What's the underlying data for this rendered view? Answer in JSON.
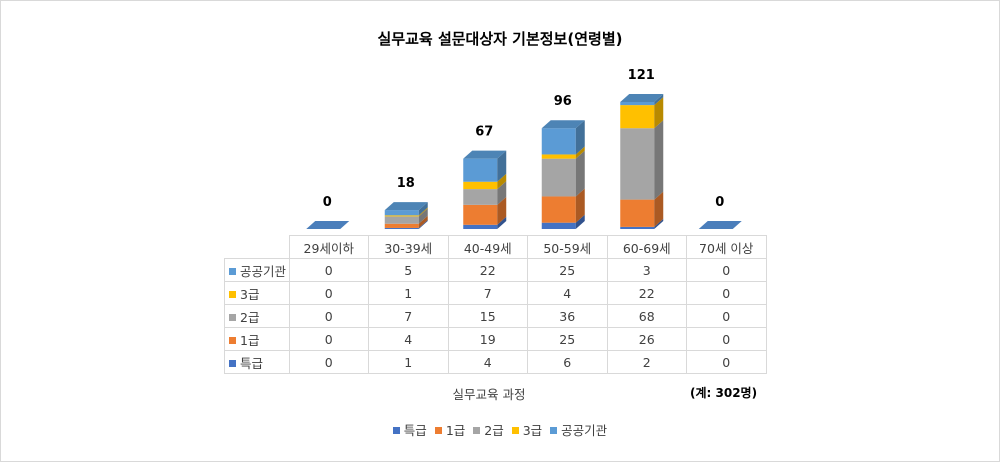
{
  "chart_data": {
    "type": "bar",
    "stacked": true,
    "title": "실무교육 설문대상자 기본정보(연령별)",
    "xlabel": "실무교육 과정",
    "note": "(계: 302명)",
    "categories": [
      "29세이하",
      "30-39세",
      "40-49세",
      "50-59세",
      "60-69세",
      "70세 이상"
    ],
    "series": [
      {
        "name": "특급",
        "color": "#4472c4",
        "values": [
          0,
          1,
          4,
          6,
          2,
          0
        ]
      },
      {
        "name": "1급",
        "color": "#ed7d31",
        "values": [
          0,
          4,
          19,
          25,
          26,
          0
        ]
      },
      {
        "name": "2급",
        "color": "#a5a5a5",
        "values": [
          0,
          7,
          15,
          36,
          68,
          0
        ]
      },
      {
        "name": "3급",
        "color": "#ffc000",
        "values": [
          0,
          1,
          7,
          4,
          22,
          0
        ]
      },
      {
        "name": "공공기관",
        "color": "#5b9bd5",
        "values": [
          0,
          5,
          22,
          25,
          3,
          0
        ]
      }
    ],
    "totals": [
      "0",
      "18",
      "67",
      "96",
      "121",
      "0"
    ],
    "legend_position": "bottom",
    "data_table": true,
    "grid": false
  }
}
